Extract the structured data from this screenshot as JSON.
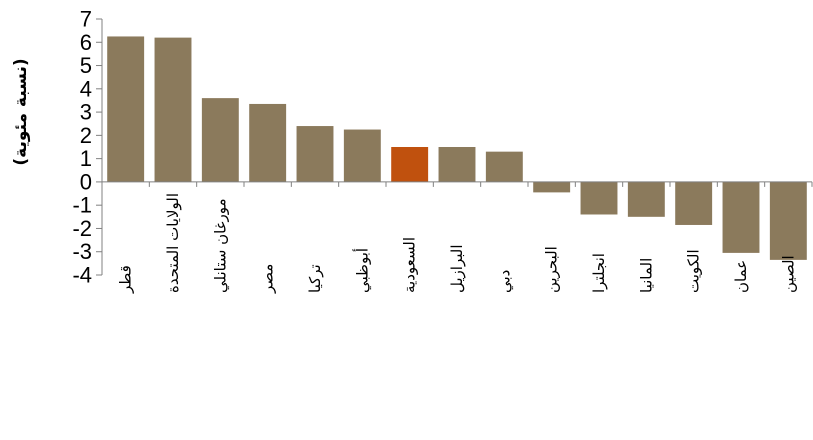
{
  "chart_data": {
    "type": "bar",
    "title": "",
    "xlabel": "",
    "ylabel": "(نسبة مئوية)",
    "ylim": [
      -4,
      7
    ],
    "yticks": [
      7,
      6,
      5,
      4,
      3,
      2,
      1,
      0,
      -1,
      -2,
      -3,
      -4
    ],
    "grid": false,
    "categories": [
      "قطر",
      "الولايات المتحدة",
      "مورغان ستانلي",
      "مصر",
      "تركيا",
      "أبوظبي",
      "السعودية",
      "البرازيل",
      "دبي",
      "البحرين",
      "انجلترا",
      "المانيا",
      "الكويت",
      "عمان",
      "الصين"
    ],
    "values": [
      6.25,
      6.2,
      3.6,
      3.35,
      2.4,
      2.25,
      1.5,
      1.5,
      1.3,
      -0.45,
      -1.4,
      -1.5,
      -1.85,
      -3.05,
      -3.35
    ],
    "colors": {
      "default": "#8b7a5c",
      "highlight": "#c0510e",
      "highlight_category": "السعودية"
    }
  }
}
